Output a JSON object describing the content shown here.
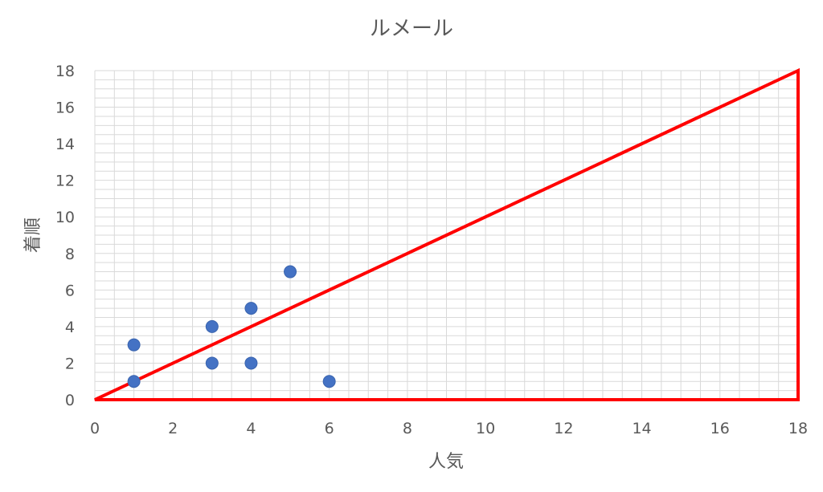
{
  "chart_data": {
    "type": "scatter",
    "title": "ルメール",
    "xlabel": "人気",
    "ylabel": "着順",
    "xlim": [
      0,
      18
    ],
    "ylim": [
      0,
      18
    ],
    "xticks": [
      0,
      2,
      4,
      6,
      8,
      10,
      12,
      14,
      16,
      18
    ],
    "yticks": [
      0,
      2,
      4,
      6,
      8,
      10,
      12,
      14,
      16,
      18
    ],
    "grid": true,
    "series": [
      {
        "points": [
          {
            "x": 1,
            "y": 1
          },
          {
            "x": 1,
            "y": 3
          },
          {
            "x": 3,
            "y": 4
          },
          {
            "x": 3,
            "y": 2
          },
          {
            "x": 4,
            "y": 5
          },
          {
            "x": 4,
            "y": 2
          },
          {
            "x": 5,
            "y": 7
          },
          {
            "x": 6,
            "y": 1
          }
        ],
        "color": "#4472C4"
      }
    ],
    "annotation_triangle": {
      "points": [
        {
          "x": 0,
          "y": 0
        },
        {
          "x": 18,
          "y": 18
        },
        {
          "x": 18,
          "y": 0
        }
      ],
      "color": "#FF0000"
    }
  }
}
